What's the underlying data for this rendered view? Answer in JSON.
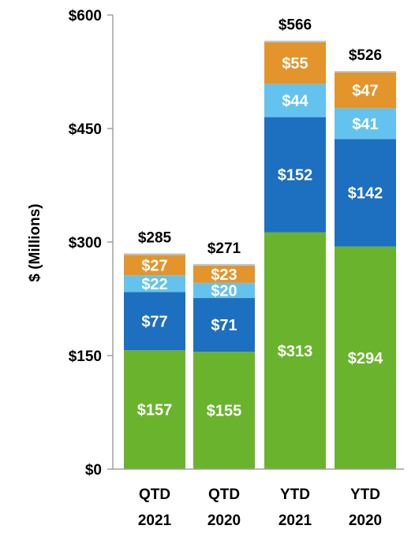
{
  "chart_data": {
    "type": "bar",
    "stacked": true,
    "title": "",
    "xlabel": "",
    "ylabel": "$ (Millions)",
    "ylim": [
      0,
      600
    ],
    "yticks": [
      0,
      150,
      300,
      450,
      600
    ],
    "ytick_labels": [
      "$0",
      "$150",
      "$300",
      "$450",
      "$600"
    ],
    "categories": [
      {
        "line1": "QTD",
        "line2": "2021"
      },
      {
        "line1": "QTD",
        "line2": "2020"
      },
      {
        "line1": "YTD",
        "line2": "2021"
      },
      {
        "line1": "YTD",
        "line2": "2020"
      }
    ],
    "series": [
      {
        "color": "#6ab42d",
        "values": [
          157,
          155,
          313,
          294
        ],
        "labels": [
          "$157",
          "$155",
          "$313",
          "$294"
        ]
      },
      {
        "color": "#1d6fbf",
        "values": [
          77,
          71,
          152,
          142
        ],
        "labels": [
          "$77",
          "$71",
          "$152",
          "$142"
        ]
      },
      {
        "color": "#63c3ee",
        "values": [
          22,
          20,
          44,
          41
        ],
        "labels": [
          "$22",
          "$20",
          "$44",
          "$41"
        ]
      },
      {
        "color": "#e3952b",
        "values": [
          27,
          23,
          55,
          47
        ],
        "labels": [
          "$27",
          "$23",
          "$55",
          "$47"
        ]
      },
      {
        "color": "#b9c6cf",
        "values": [
          2,
          2,
          2,
          2
        ],
        "labels": [
          "",
          "",
          "",
          ""
        ]
      }
    ],
    "totals": [
      285,
      271,
      566,
      526
    ],
    "total_labels": [
      "$285",
      "$271",
      "$566",
      "$526"
    ],
    "grid": false,
    "legend": "none"
  }
}
